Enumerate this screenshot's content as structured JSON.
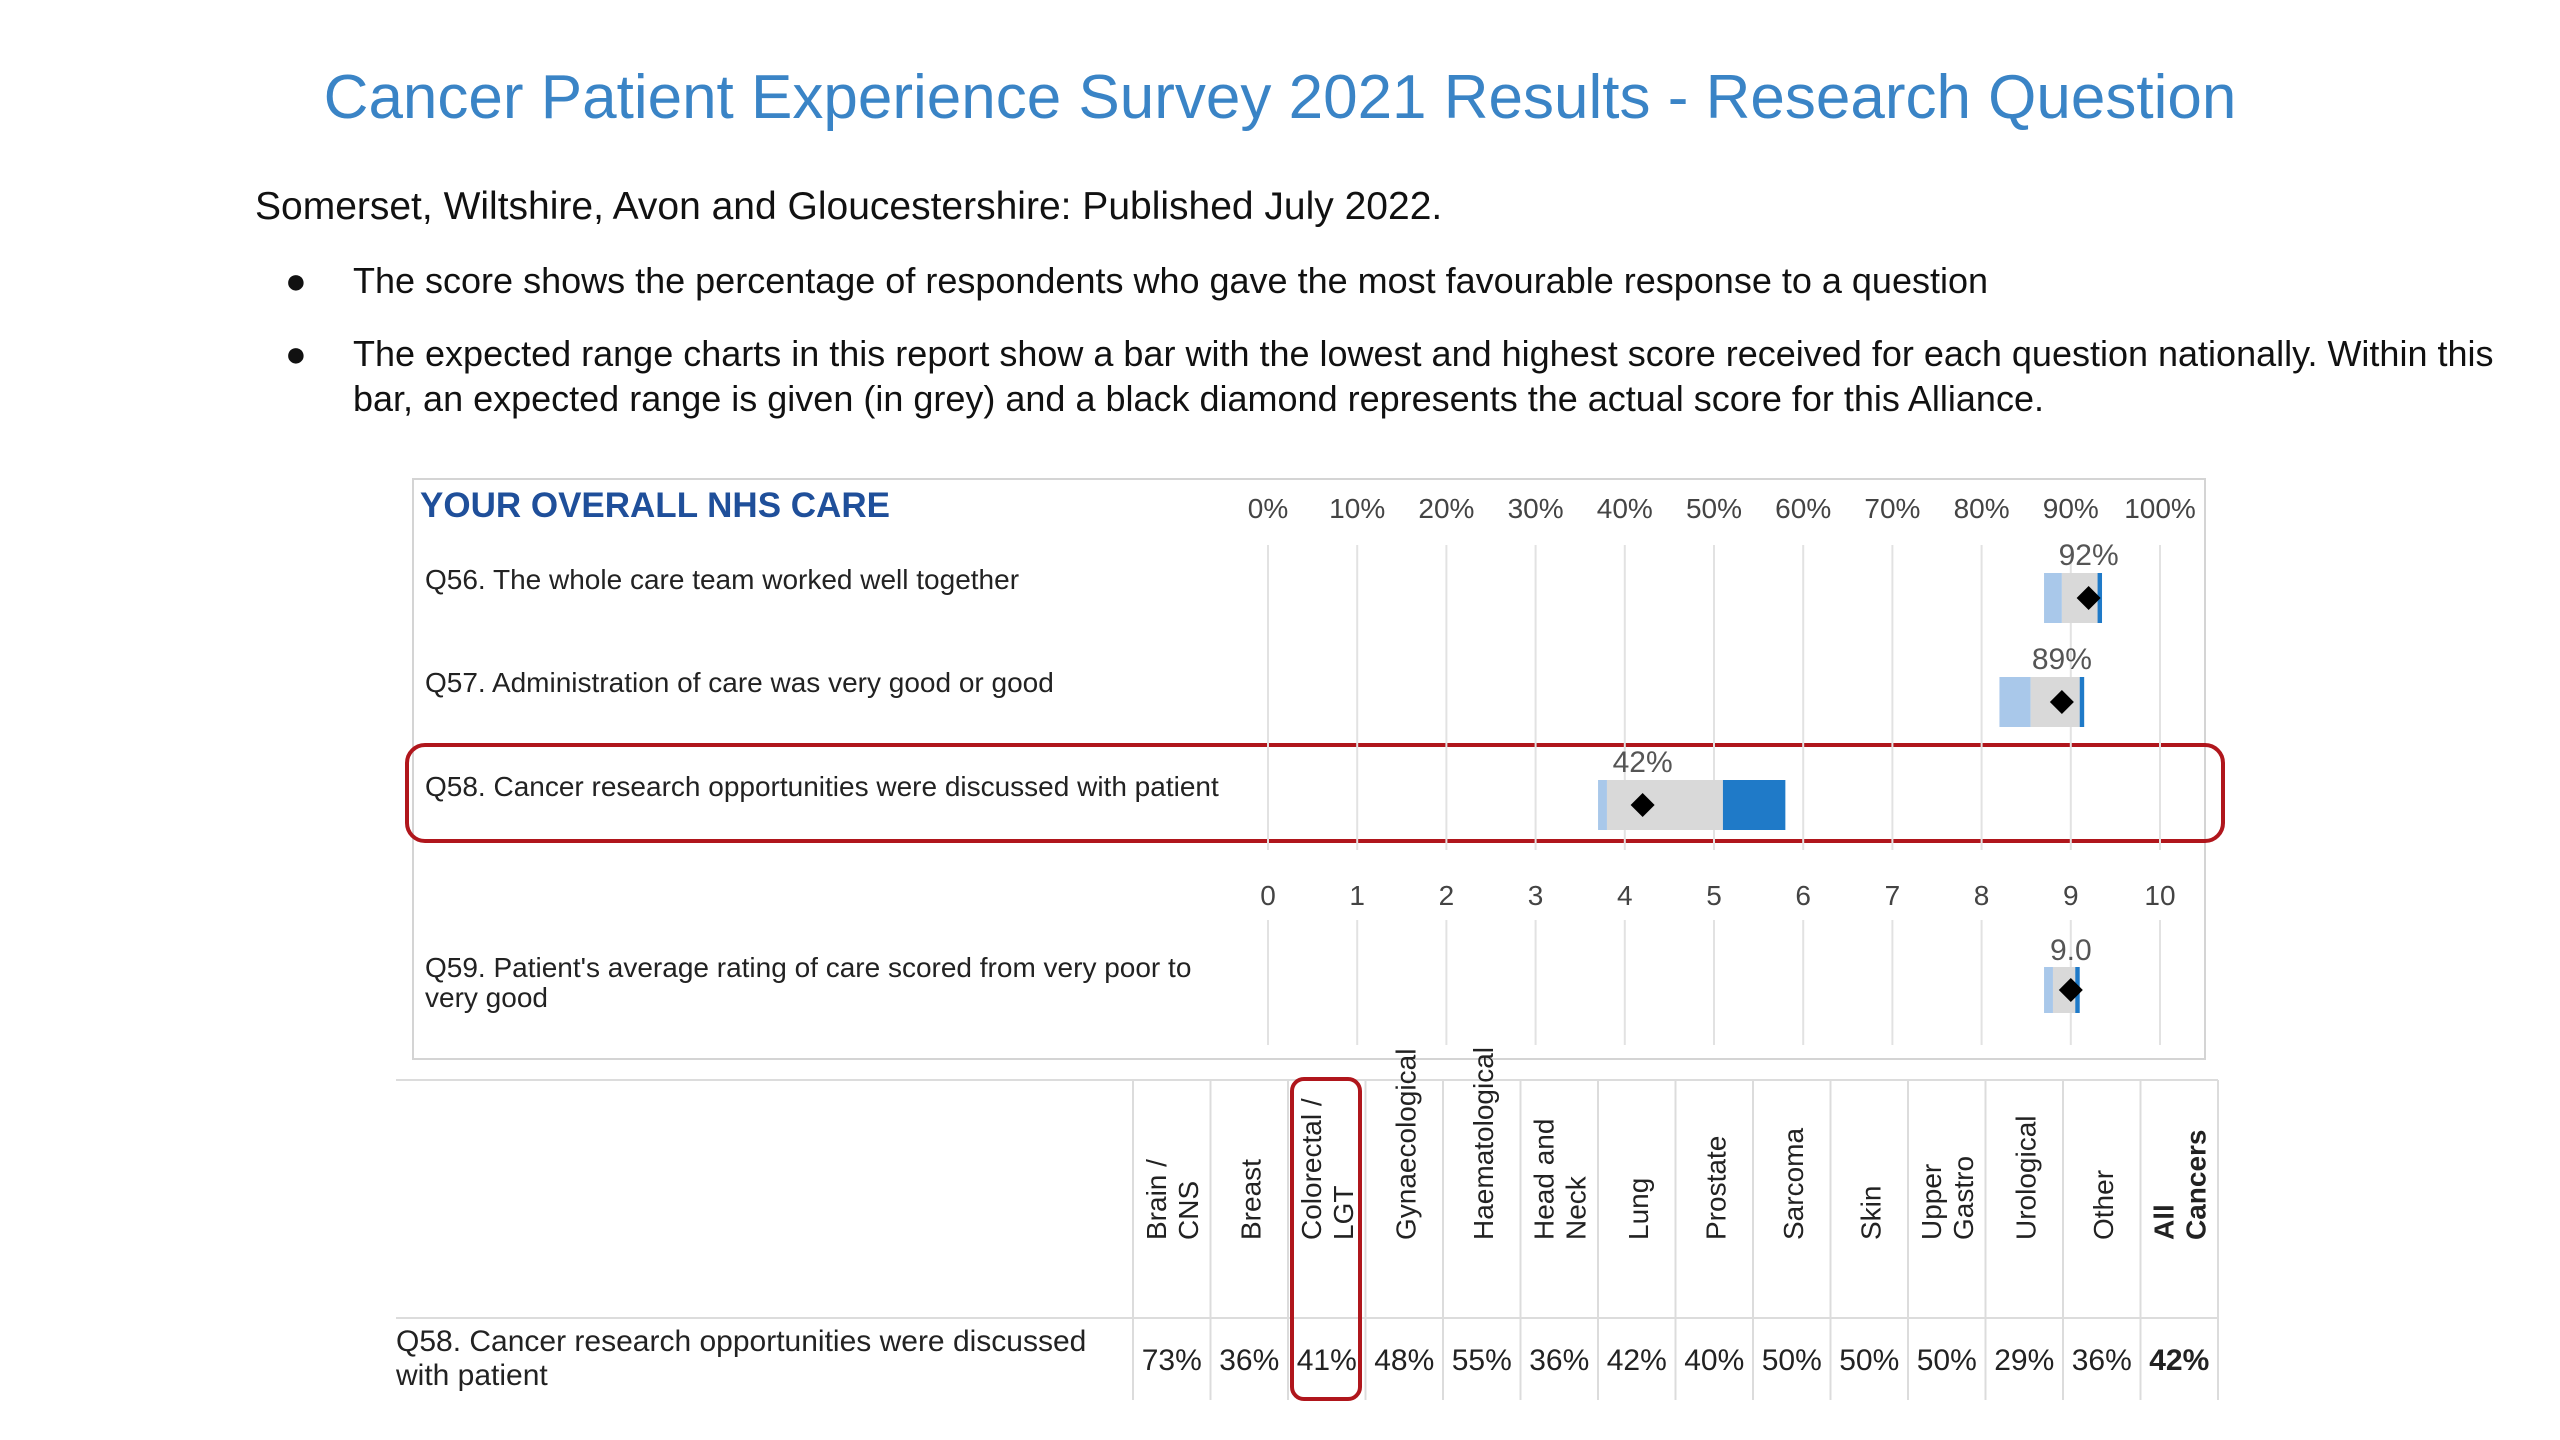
{
  "header": {
    "title": "Cancer Patient Experience Survey 2021 Results -  Research Question",
    "subtitle": "Somerset, Wiltshire, Avon and Gloucestershire: Published July 2022."
  },
  "bullets": [
    "The score shows the percentage of respondents who gave the most favourable response to a question",
    "The expected range charts in this report show a bar with the lowest and highest score received for each question nationally. Within this bar, an expected range is given (in grey) and a black diamond represents the actual score for this Alliance."
  ],
  "colors": {
    "title": "#3a84c6",
    "heading": "#1f4f9a",
    "low_range": "#a9c8ea",
    "expected_range": "#d9d9d9",
    "high_range": "#1f7ac8",
    "highlight": "#b0161c"
  },
  "chart_data": [
    {
      "type": "range",
      "title": "YOUR OVERALL NHS CARE",
      "axis_ticks": [
        "0%",
        "10%",
        "20%",
        "30%",
        "40%",
        "50%",
        "60%",
        "70%",
        "80%",
        "90%",
        "100%"
      ],
      "xlim": [
        0,
        100
      ],
      "unit": "%",
      "grid": true,
      "series": [
        {
          "label": "Q56. The whole care team worked well together",
          "score": 92,
          "score_label": "92%",
          "national_min": 87,
          "expected_low": 89,
          "expected_high": 93,
          "national_max": 93.5
        },
        {
          "label": "Q57. Administration of care was very good or good",
          "score": 89,
          "score_label": "89%",
          "national_min": 82,
          "expected_low": 85.5,
          "expected_high": 91,
          "national_max": 91.5
        },
        {
          "label": "Q58. Cancer research opportunities were discussed with patient",
          "score": 42,
          "score_label": "42%",
          "national_min": 37,
          "expected_low": 38,
          "expected_high": 51,
          "national_max": 58,
          "highlighted": true
        }
      ]
    },
    {
      "type": "range",
      "axis_ticks": [
        "0",
        "1",
        "2",
        "3",
        "4",
        "5",
        "6",
        "7",
        "8",
        "9",
        "10"
      ],
      "xlim": [
        0,
        10
      ],
      "grid": true,
      "series": [
        {
          "label": "Q59. Patient's average rating of care scored from very poor to very good",
          "score": 9.0,
          "score_label": "9.0",
          "national_min": 8.7,
          "expected_low": 8.8,
          "expected_high": 9.05,
          "national_max": 9.1
        }
      ]
    },
    {
      "type": "table",
      "row_label": "Q58. Cancer research opportunities were discussed with patient",
      "columns": [
        "Brain / CNS",
        "Breast",
        "Colorectal / LGT",
        "Gynaecological",
        "Haematological",
        "Head and Neck",
        "Lung",
        "Prostate",
        "Sarcoma",
        "Skin",
        "Upper Gastro",
        "Urological",
        "Other",
        "All Cancers"
      ],
      "column_lines": [
        [
          "Brain /",
          "CNS"
        ],
        [
          "Breast"
        ],
        [
          "Colorectal /",
          "LGT"
        ],
        [
          "Gynaecological"
        ],
        [
          "Haematological"
        ],
        [
          "Head and",
          "Neck"
        ],
        [
          "Lung"
        ],
        [
          "Prostate"
        ],
        [
          "Sarcoma"
        ],
        [
          "Skin"
        ],
        [
          "Upper",
          "Gastro"
        ],
        [
          "Urological"
        ],
        [
          "Other"
        ],
        [
          "All",
          "Cancers"
        ]
      ],
      "values": [
        "73%",
        "36%",
        "41%",
        "48%",
        "55%",
        "36%",
        "42%",
        "40%",
        "50%",
        "50%",
        "50%",
        "29%",
        "36%",
        "42%"
      ],
      "highlighted_column": "Colorectal / LGT",
      "bold_column": "All Cancers"
    }
  ]
}
